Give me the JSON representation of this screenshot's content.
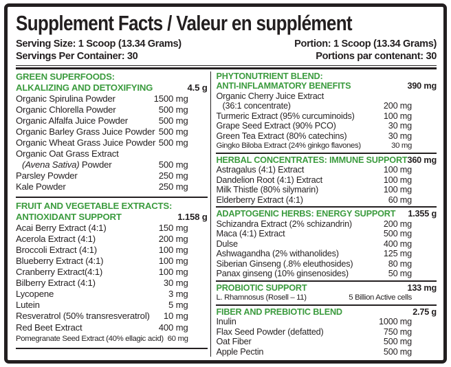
{
  "title": "Supplement Facts / Valeur en supplément",
  "serving": {
    "size_en": "Serving Size: 1 Scoop (13.34 Grams)",
    "size_fr": "Portion: 1 Scoop (13.34 Grams)",
    "count_en": "Servings Per Container: 30",
    "count_fr": "Portions par contenant: 30"
  },
  "colors": {
    "header_green": "#3b9b3e",
    "ink": "#231f20",
    "background": "#ffffff"
  },
  "columns": {
    "left": [
      {
        "name_lines": [
          "GREEN SUPERFOODS:",
          "ALKALIZING AND DETOXIFYING"
        ],
        "total": "4.5 g",
        "ingredients": [
          {
            "name": "Organic Spirulina Powder",
            "amount": "1500 mg"
          },
          {
            "name": "Organic Chlorella Powder",
            "amount": "500 mg"
          },
          {
            "name": "Organic Alfalfa Juice Powder",
            "amount": "500 mg"
          },
          {
            "name": "Organic Barley Grass Juice Powder",
            "amount": "500 mg"
          },
          {
            "name": "Organic Wheat Grass Juice Powder",
            "amount": "500 mg"
          },
          {
            "name": "Organic Oat Grass Extract",
            "amount": ""
          },
          {
            "italic_prefix": "(Avena Sativa)",
            "name": " Powder",
            "amount": "500 mg",
            "indent": true
          },
          {
            "name": "Parsley Powder",
            "amount": "250 mg"
          },
          {
            "name": "Kale Powder",
            "amount": "250 mg"
          }
        ]
      },
      {
        "name_lines": [
          "FRUIT AND VEGETABLE EXTRACTS:",
          "ANTIOXIDANT SUPPORT"
        ],
        "total": "1.158 g",
        "ingredients": [
          {
            "name": "Acai Berry Extract (4:1)",
            "amount": "150 mg"
          },
          {
            "name": "Acerola Extract (4:1)",
            "amount": "200 mg"
          },
          {
            "name": "Broccoli Extract (4:1)",
            "amount": "100 mg"
          },
          {
            "name": "Blueberry Extract (4:1)",
            "amount": "100 mg"
          },
          {
            "name": "Cranberry Extract(4:1)",
            "amount": "100 mg"
          },
          {
            "name": "Bilberry Extract (4:1)",
            "amount": "30 mg"
          },
          {
            "name": "Lycopene",
            "amount": "3 mg"
          },
          {
            "name": "Lutein",
            "amount": "5 mg"
          },
          {
            "name": "Resveratrol (50% transresveratrol)",
            "amount": "10 mg"
          },
          {
            "name": "Red Beet Extract",
            "amount": "400 mg"
          },
          {
            "name": "Pomegranate Seed Extract (40% ellagic acid)",
            "amount": "60 mg"
          }
        ]
      }
    ],
    "right": [
      {
        "name_lines": [
          "PHYTONUTRIENT BLEND:",
          "ANTI-INFLAMMATORY BENEFITS"
        ],
        "total": "390 mg",
        "ingredients": [
          {
            "name": "Organic Cherry Juice Extract",
            "amount": ""
          },
          {
            "name": "(36:1 concentrate)",
            "amount": "200 mg",
            "indent": true
          },
          {
            "name": "Turmeric Extract (95% curcuminoids)",
            "amount": "100 mg"
          },
          {
            "name": "Grape Seed Extract (90% PCO)",
            "amount": "30 mg"
          },
          {
            "name": "Green Tea Extract (80% catechins)",
            "amount": "30 mg"
          },
          {
            "name": "Gingko Biloba Extract (24% ginkgo flavones)",
            "amount": "30 mg"
          }
        ]
      },
      {
        "name_lines": [
          "HERBAL CONCENTRATES: IMMUNE SUPPORT"
        ],
        "total": "360 mg",
        "ingredients": [
          {
            "name": "Astragalus (4:1) Extract",
            "amount": "100 mg"
          },
          {
            "name": "Dandelion Root (4:1) Extract",
            "amount": "100 mg"
          },
          {
            "name": "Milk Thistle (80% silymarin)",
            "amount": "100 mg"
          },
          {
            "name": "Elderberry Extract (4:1)",
            "amount": "60 mg"
          }
        ]
      },
      {
        "name_lines": [
          "ADAPTOGENIC HERBS: ENERGY SUPPORT"
        ],
        "total": "1.355 g",
        "ingredients": [
          {
            "name": "Schizandra Extract (2% schizandrin)",
            "amount": "200 mg"
          },
          {
            "name": "Maca (4:1) Extract",
            "amount": "500 mg"
          },
          {
            "name": "Dulse",
            "amount": "400 mg"
          },
          {
            "name": "Ashwagandha (2% withanolides)",
            "amount": "125 mg"
          },
          {
            "name": "Siberian Ginseng (.8% eleuthosides)",
            "amount": "80 mg"
          },
          {
            "name": "Panax ginseng (10% ginsenosides)",
            "amount": "50 mg"
          }
        ]
      },
      {
        "name_lines": [
          "PROBIOTIC SUPPORT"
        ],
        "total": "133 mg",
        "ingredients": [
          {
            "name": "L. Rhamnosus (Rosell – 11)",
            "amount": "5 Billion Active cells"
          }
        ]
      },
      {
        "name_lines": [
          "FIBER AND PREBIOTIC BLEND"
        ],
        "total": "2.75 g",
        "ingredients": [
          {
            "name": "Inulin",
            "amount": "1000 mg"
          },
          {
            "name": "Flax Seed Powder (defatted)",
            "amount": "750 mg"
          },
          {
            "name": "Oat Fiber",
            "amount": "500 mg"
          },
          {
            "name": "Apple Pectin",
            "amount": "500 mg"
          }
        ]
      }
    ]
  }
}
